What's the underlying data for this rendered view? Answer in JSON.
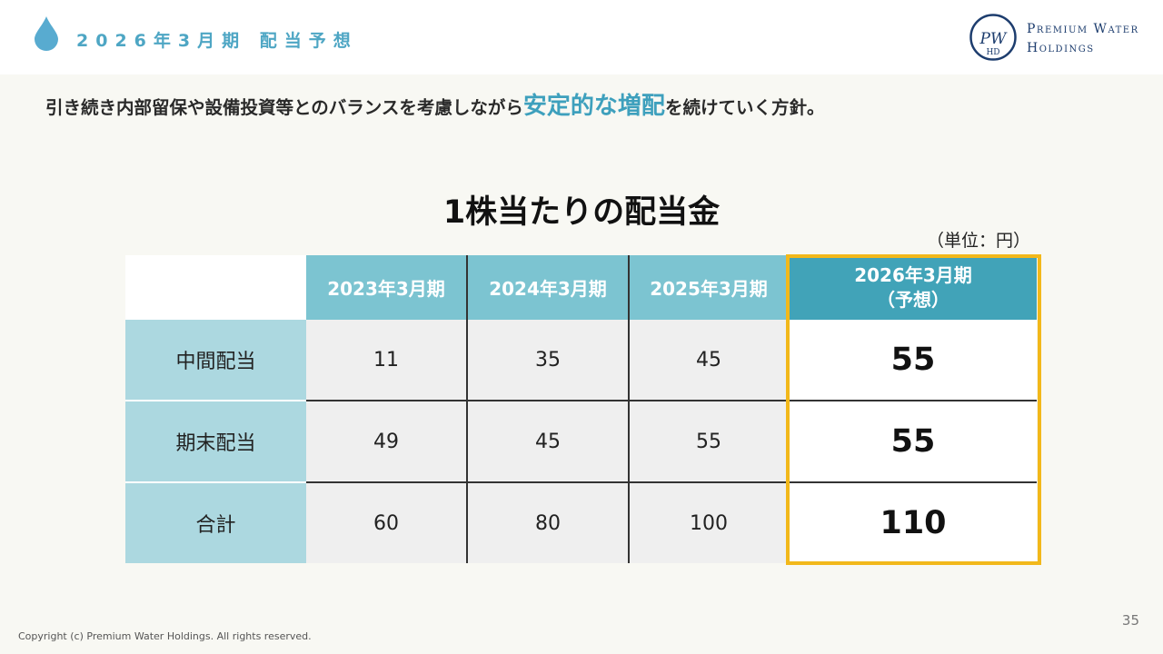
{
  "header": {
    "title": "2026年3月期 配当予想",
    "logo_line1": "Premium Water",
    "logo_line2": "Holdings",
    "logo_monogram": "PWHD",
    "accent_color": "#4ea6c4"
  },
  "lead": {
    "before": "引き続き内部留保や設備投資等とのバランスを考慮しながら",
    "highlight": "安定的な増配",
    "after": "を続けていく方針。"
  },
  "section": {
    "title": "1株当たりの配当金",
    "unit": "（単位：円）"
  },
  "table": {
    "columns": [
      "2023年3月期",
      "2024年3月期",
      "2025年3月期"
    ],
    "forecast_column": {
      "line1": "2026年3月期",
      "line2": "（予想）"
    },
    "rows": [
      {
        "label": "中間配当",
        "values": [
          "11",
          "35",
          "45"
        ],
        "forecast": "55"
      },
      {
        "label": "期末配当",
        "values": [
          "49",
          "45",
          "55"
        ],
        "forecast": "55"
      },
      {
        "label": "合計",
        "values": [
          "60",
          "80",
          "100"
        ],
        "forecast": "110"
      }
    ],
    "highlight_color": "#f2b81a"
  },
  "footer": {
    "page_number": "35",
    "copyright": "Copyright (c) Premium Water Holdings. All rights reserved."
  }
}
